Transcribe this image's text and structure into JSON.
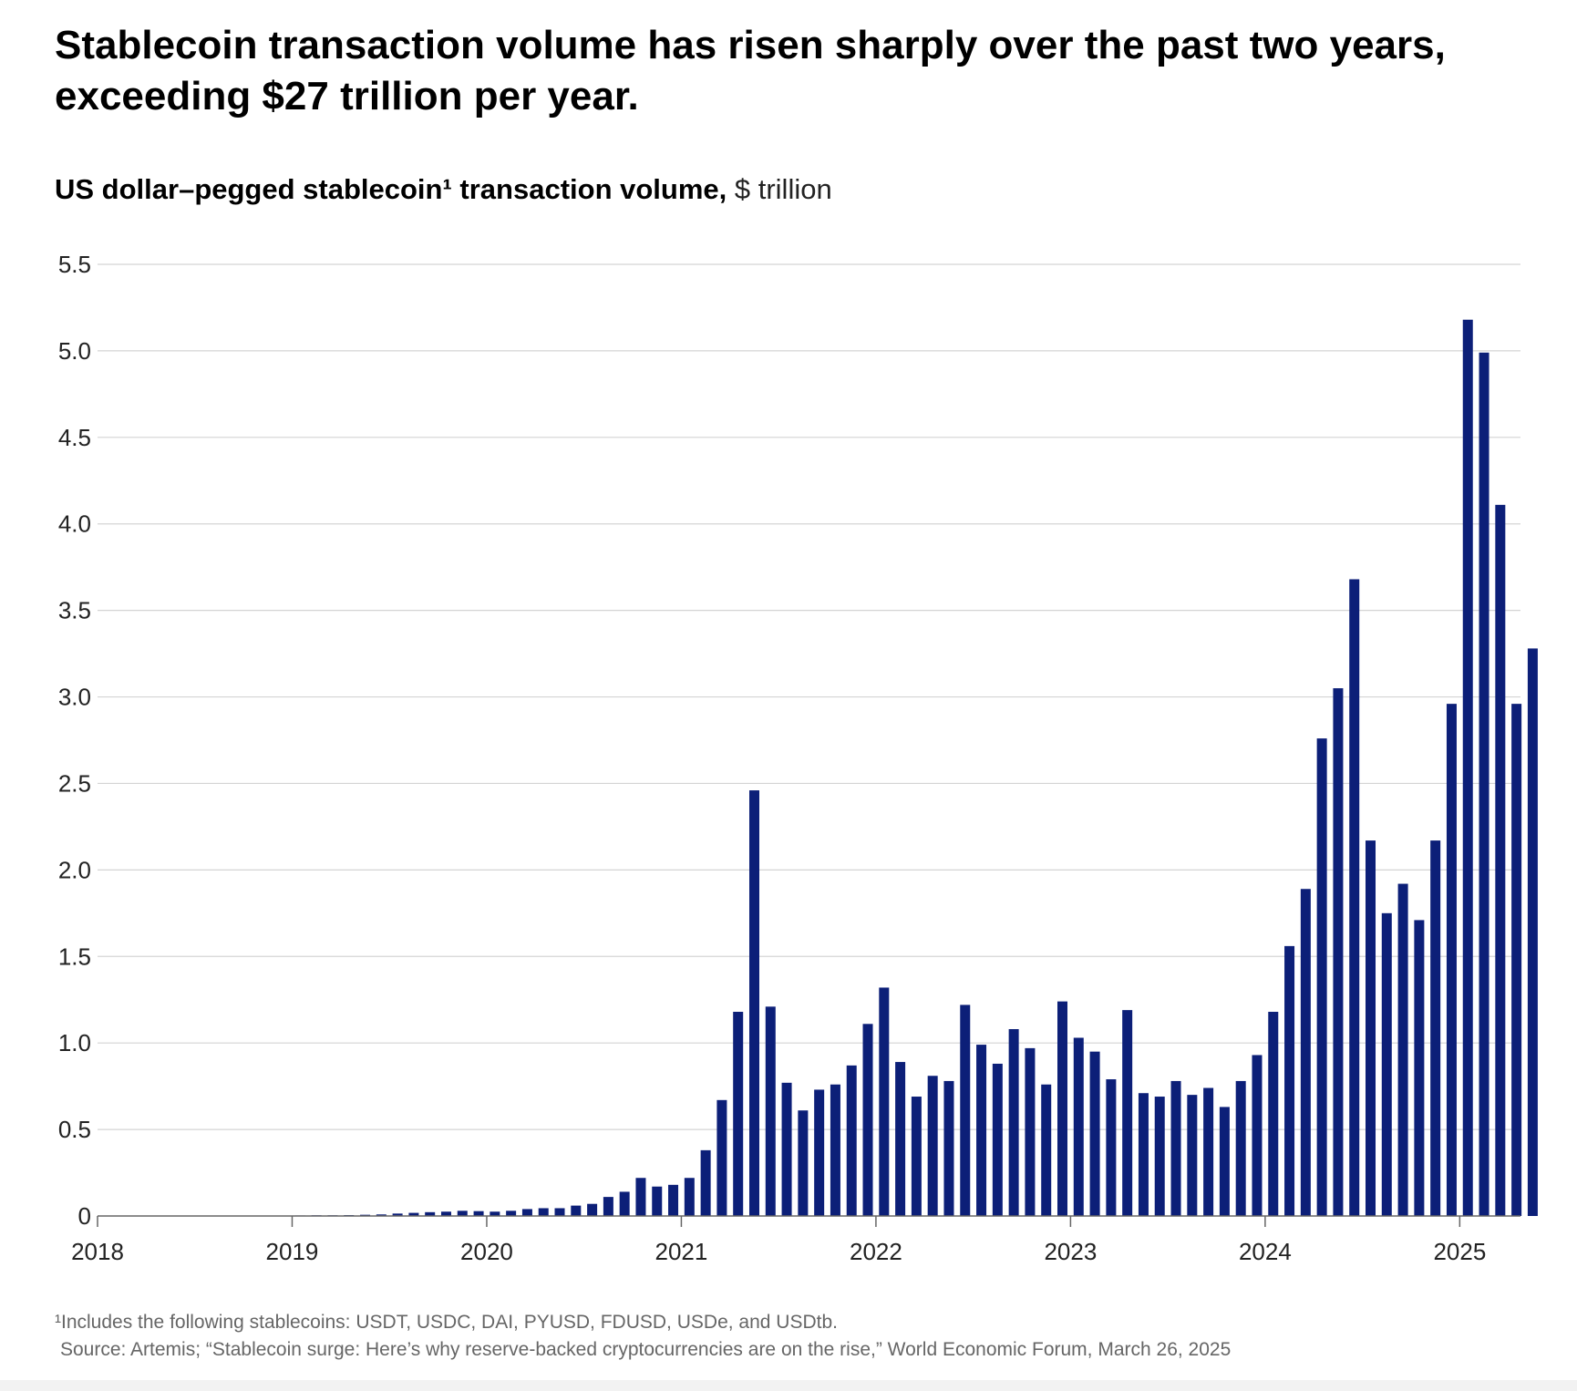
{
  "headline": "Stablecoin transaction volume has risen sharply over the past two years, exceeding $27 trillion per year.",
  "subtitle": {
    "bold": "US dollar–pegged stablecoin¹ transaction volume,",
    "light": " $ trillion"
  },
  "colors": {
    "bar": "#0c1f78",
    "grid": "#d4d4d4",
    "axis": "#666666"
  },
  "chart_data": {
    "type": "bar",
    "title": "US dollar–pegged stablecoin¹ transaction volume, $ trillion",
    "xlabel": "",
    "ylabel": "$ trillion",
    "ylim": [
      0,
      5.5
    ],
    "y_ticks": [
      "0",
      "0.5",
      "1.0",
      "1.5",
      "2.0",
      "2.5",
      "3.0",
      "3.5",
      "4.0",
      "4.5",
      "5.0",
      "5.5"
    ],
    "x_ticks": [
      "2018",
      "2019",
      "2020",
      "2021",
      "2022",
      "2023",
      "2024",
      "2025"
    ],
    "start": "2018-01",
    "grid": true,
    "series": [
      {
        "name": "Transaction volume",
        "values": [
          0,
          0,
          0,
          0,
          0,
          0,
          0,
          0,
          0,
          0,
          0,
          0,
          0.003,
          0.004,
          0.004,
          0.005,
          0.007,
          0.009,
          0.014,
          0.018,
          0.022,
          0.025,
          0.03,
          0.028,
          0.025,
          0.03,
          0.04,
          0.045,
          0.045,
          0.06,
          0.07,
          0.11,
          0.14,
          0.22,
          0.17,
          0.18,
          0.22,
          0.38,
          0.67,
          1.18,
          2.46,
          1.21,
          0.77,
          0.61,
          0.73,
          0.76,
          0.87,
          1.11,
          1.32,
          0.89,
          0.69,
          0.81,
          0.78,
          1.22,
          0.99,
          0.88,
          1.08,
          0.97,
          0.76,
          1.24,
          1.03,
          0.95,
          0.79,
          1.19,
          0.71,
          0.69,
          0.78,
          0.7,
          0.74,
          0.63,
          0.78,
          0.93,
          1.18,
          1.56,
          1.89,
          2.76,
          3.05,
          3.68,
          2.17,
          1.75,
          1.92,
          1.71,
          2.17,
          2.96,
          5.18,
          4.99,
          4.11,
          2.96,
          3.28
        ]
      }
    ]
  },
  "footnotes": {
    "note": "¹Includes the following stablecoins: USDT, USDC, DAI, PYUSD, FDUSD, USDe, and USDtb.",
    "source": "Source: Artemis; “Stablecoin surge: Here’s why reserve-backed cryptocurrencies are on the rise,” World Economic Forum, March 26, 2025"
  }
}
